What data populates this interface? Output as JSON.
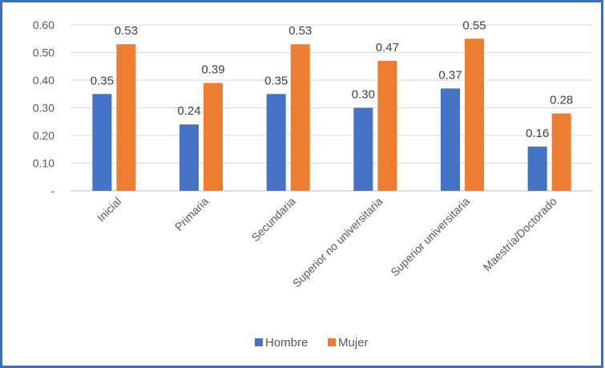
{
  "chart_data": {
    "type": "bar",
    "title": "",
    "xlabel": "",
    "ylabel": "",
    "categories": [
      "Inicial",
      "Primaria",
      "Secundaria",
      "Superior no universitaria",
      "Superior universitaria",
      "Maestría/Doctorado"
    ],
    "series": [
      {
        "name": "Hombre",
        "values": [
          0.35,
          0.24,
          0.35,
          0.3,
          0.37,
          0.16
        ],
        "labels": [
          "0.35",
          "0.24",
          "0.35",
          "0.30",
          "0.37",
          "0.16"
        ],
        "color": "#4472C4"
      },
      {
        "name": "Mujer",
        "values": [
          0.53,
          0.39,
          0.53,
          0.47,
          0.55,
          0.28
        ],
        "labels": [
          "0.53",
          "0.39",
          "0.53",
          "0.47",
          "0.55",
          "0.28"
        ],
        "color": "#ED7D31"
      }
    ],
    "ylim": [
      0,
      0.6
    ],
    "yticks": [
      0,
      0.1,
      0.2,
      0.3,
      0.4,
      0.5,
      0.6
    ],
    "ytick_labels": [
      "-",
      "0.10",
      "0.20",
      "0.30",
      "0.40",
      "0.50",
      "0.60"
    ],
    "grid": true,
    "legend": "bottom"
  },
  "colors": {
    "frame_border": "#3F6FB5",
    "gridline": "#D9D9D9",
    "axis_line": "#BFBFBF"
  }
}
